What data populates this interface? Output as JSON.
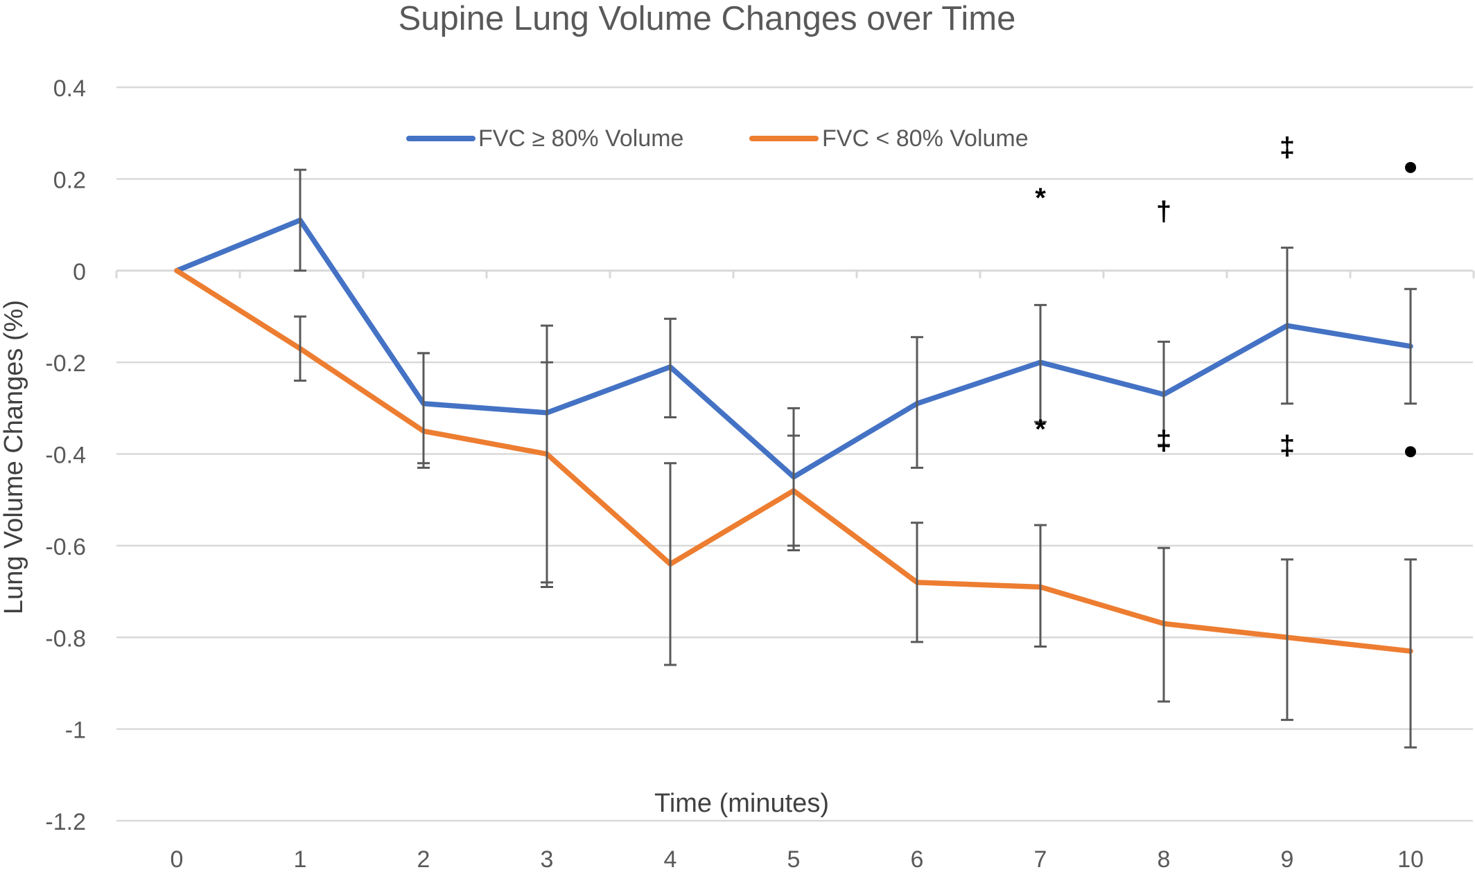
{
  "chart_data": {
    "type": "line",
    "title": "Supine Lung Volume Changes over Time",
    "xlabel": "Time (minutes)",
    "ylabel": "Lung Volume Changes (%)",
    "ylim": [
      -1.2,
      0.4
    ],
    "yticks": [
      0.4,
      0.2,
      0,
      -0.2,
      -0.4,
      -0.6,
      -0.8,
      -1,
      -1.2
    ],
    "ytick_labels": [
      "0.4",
      "0.2",
      "0",
      "-0.2",
      "-0.4",
      "-0.6",
      "-0.8",
      "-1",
      "-1.2"
    ],
    "x": [
      0,
      1,
      2,
      3,
      4,
      5,
      6,
      7,
      8,
      9,
      10
    ],
    "xtick_labels": [
      "0",
      "1",
      "2",
      "3",
      "4",
      "5",
      "6",
      "7",
      "8",
      "9",
      "10"
    ],
    "grid": true,
    "legend_position": "top-center",
    "series": [
      {
        "name": "FVC ≥ 80% Volume",
        "color": "#4472C4",
        "values": [
          0,
          0.11,
          -0.29,
          -0.31,
          -0.21,
          -0.45,
          -0.29,
          -0.2,
          -0.27,
          -0.12,
          -0.165
        ],
        "error_low": [
          0,
          0.0,
          -0.42,
          -0.68,
          -0.32,
          -0.6,
          -0.43,
          -0.33,
          -0.38,
          -0.29,
          -0.29
        ],
        "error_high": [
          0,
          0.22,
          -0.18,
          -0.2,
          -0.105,
          -0.36,
          -0.145,
          -0.075,
          -0.155,
          0.05,
          -0.04
        ]
      },
      {
        "name": "FVC < 80% Volume",
        "color": "#ED7D31",
        "values": [
          0,
          -0.17,
          -0.35,
          -0.4,
          -0.64,
          -0.48,
          -0.68,
          -0.69,
          -0.77,
          -0.8,
          -0.83
        ],
        "error_low": [
          0,
          -0.24,
          -0.43,
          -0.69,
          -0.86,
          -0.61,
          -0.81,
          -0.82,
          -0.94,
          -0.98,
          -1.04
        ],
        "error_high": [
          0,
          -0.1,
          -0.18,
          -0.12,
          -0.42,
          -0.3,
          -0.55,
          -0.555,
          -0.605,
          -0.63,
          -0.63
        ]
      }
    ],
    "annotations": [
      {
        "text": "*",
        "x": 7,
        "y": 0.16
      },
      {
        "text": "†",
        "x": 8,
        "y": 0.13
      },
      {
        "text": "‡",
        "x": 9,
        "y": 0.27
      },
      {
        "text": "●",
        "x": 10,
        "y": 0.225
      },
      {
        "text": "*",
        "x": 7,
        "y": -0.345
      },
      {
        "text": "‡",
        "x": 8,
        "y": -0.37
      },
      {
        "text": "‡",
        "x": 9,
        "y": -0.38
      },
      {
        "text": "●",
        "x": 10,
        "y": -0.395
      }
    ]
  }
}
